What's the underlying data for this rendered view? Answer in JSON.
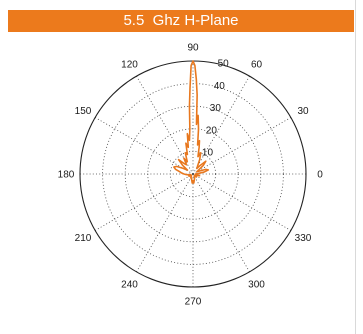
{
  "chart_data": {
    "type": "polar",
    "title": "5.5  Ghz H-Plane",
    "angle_unit": "degrees",
    "angle_ticks": [
      0,
      30,
      60,
      90,
      120,
      150,
      180,
      210,
      240,
      270,
      300,
      330
    ],
    "angle_tick_labels": [
      "0",
      "30",
      "60",
      "90",
      "120",
      "150",
      "180",
      "210",
      "240",
      "270",
      "300",
      "330"
    ],
    "radial_ticks": [
      10,
      20,
      30,
      40,
      50
    ],
    "radial_tick_labels": [
      "10",
      "20",
      "30",
      "40",
      "50"
    ],
    "radial_range": [
      0,
      50
    ],
    "grid": true,
    "series": [
      {
        "color": "#e8781f",
        "points": [
          [
            0,
            1
          ],
          [
            5,
            2
          ],
          [
            10,
            5
          ],
          [
            15,
            7
          ],
          [
            20,
            6
          ],
          [
            25,
            3
          ],
          [
            30,
            2
          ],
          [
            35,
            3
          ],
          [
            40,
            6
          ],
          [
            45,
            8
          ],
          [
            50,
            5
          ],
          [
            55,
            3
          ],
          [
            60,
            4
          ],
          [
            65,
            7
          ],
          [
            70,
            10
          ],
          [
            74,
            8
          ],
          [
            77,
            12
          ],
          [
            79,
            15
          ],
          [
            81,
            13
          ],
          [
            83,
            20
          ],
          [
            85,
            26
          ],
          [
            86,
            22
          ],
          [
            87,
            35
          ],
          [
            88,
            42
          ],
          [
            89,
            48
          ],
          [
            90,
            50
          ],
          [
            91,
            48
          ],
          [
            92,
            38
          ],
          [
            93,
            30
          ],
          [
            94,
            20
          ],
          [
            96,
            15
          ],
          [
            98,
            18
          ],
          [
            100,
            12
          ],
          [
            103,
            14
          ],
          [
            106,
            9
          ],
          [
            110,
            10
          ],
          [
            115,
            6
          ],
          [
            120,
            8
          ],
          [
            125,
            5
          ],
          [
            130,
            6
          ],
          [
            135,
            9
          ],
          [
            140,
            6
          ],
          [
            145,
            3
          ],
          [
            150,
            5
          ],
          [
            155,
            8
          ],
          [
            160,
            9
          ],
          [
            165,
            8
          ],
          [
            170,
            6
          ],
          [
            175,
            5
          ],
          [
            180,
            4
          ],
          [
            185,
            3
          ],
          [
            190,
            2
          ],
          [
            195,
            1
          ],
          [
            200,
            2
          ],
          [
            205,
            1
          ],
          [
            210,
            2
          ],
          [
            220,
            1
          ],
          [
            230,
            1
          ],
          [
            240,
            2
          ],
          [
            250,
            2
          ],
          [
            260,
            3
          ],
          [
            265,
            4
          ],
          [
            268,
            3
          ],
          [
            270,
            3
          ],
          [
            272,
            3
          ],
          [
            275,
            4
          ],
          [
            280,
            3
          ],
          [
            290,
            2
          ],
          [
            300,
            1
          ],
          [
            310,
            1
          ],
          [
            320,
            2
          ],
          [
            330,
            1
          ],
          [
            340,
            2
          ],
          [
            345,
            3
          ],
          [
            350,
            2
          ],
          [
            355,
            1
          ],
          [
            360,
            1
          ]
        ]
      }
    ],
    "colors": {
      "title_bar": "#ec7a1c",
      "title_text": "#ffffff",
      "trace": "#e8781f",
      "grid": "#444444"
    }
  }
}
